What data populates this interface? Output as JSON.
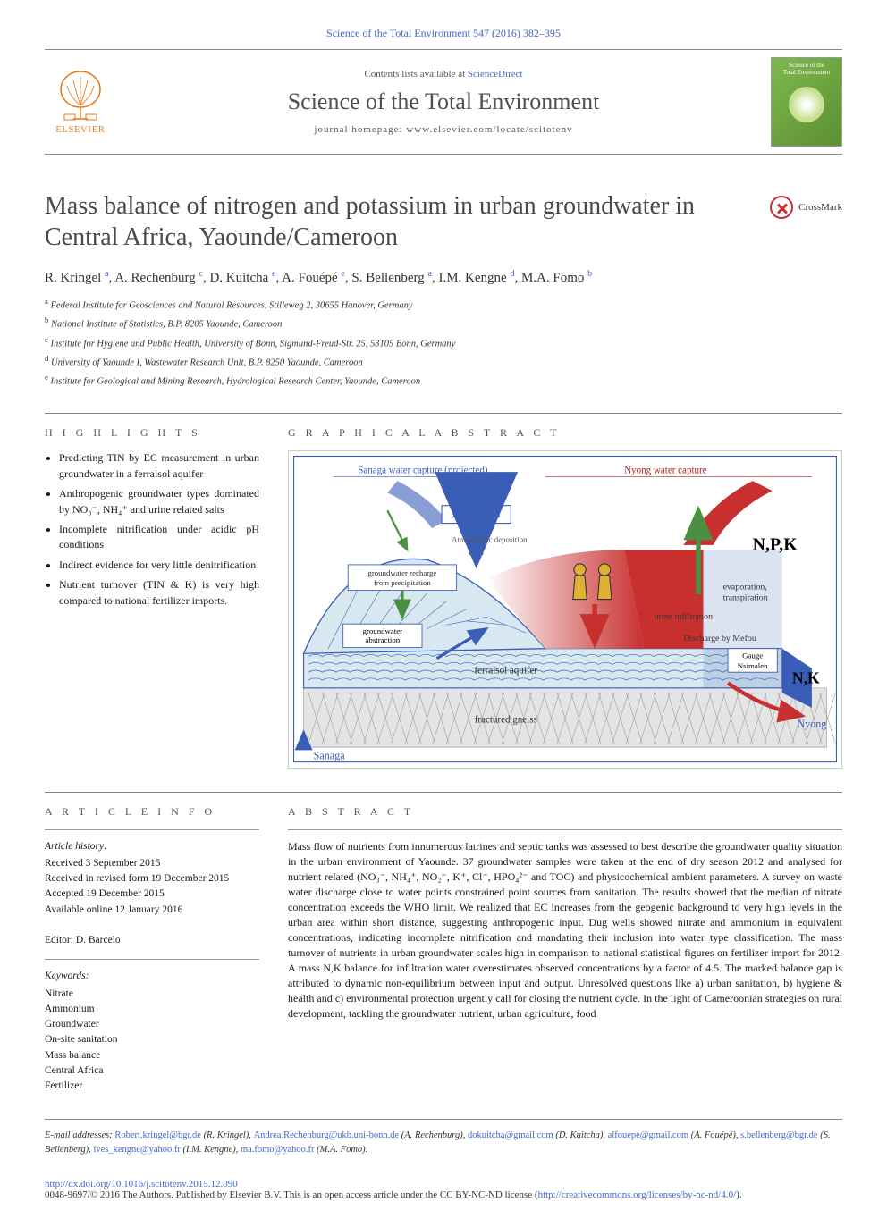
{
  "header": {
    "citation": "Science of the Total Environment 547 (2016) 382–395",
    "contents_prefix": "Contents lists available at ",
    "contents_link": "ScienceDirect",
    "journal_title": "Science of the Total Environment",
    "homepage_prefix": "journal homepage: ",
    "homepage_url": "www.elsevier.com/locate/scitotenv",
    "publisher_name": "ELSEVIER",
    "cover_line1": "Science of the",
    "cover_line2": "Total Environment"
  },
  "crossmark_label": "CrossMark",
  "article": {
    "title": "Mass balance of nitrogen and potassium in urban groundwater in Central Africa, Yaounde/Cameroon",
    "authors_html": "R. Kringel <sup>a</sup>, A. Rechenburg <sup>c</sup>, D. Kuitcha <sup>e</sup>, A. Fouépé <sup>e</sup>, S. Bellenberg <sup>a</sup>, I.M. Kengne <sup>d</sup>, M.A. Fomo <sup>b</sup>",
    "affiliations": [
      {
        "sup": "a",
        "text": "Federal Institute for Geosciences and Natural Resources, Stilleweg 2, 30655 Hanover, Germany"
      },
      {
        "sup": "b",
        "text": "National Institute of Statistics, B.P. 8205 Yaounde, Cameroon"
      },
      {
        "sup": "c",
        "text": "Institute for Hygiene and Public Health, University of Bonn, Sigmund-Freud-Str. 25, 53105 Bonn, Germany"
      },
      {
        "sup": "d",
        "text": "University of Yaounde I, Wastewater Research Unit, B.P. 8250 Yaounde, Cameroon"
      },
      {
        "sup": "e",
        "text": "Institute for Geological and Mining Research, Hydrological Research Center, Yaounde, Cameroon"
      }
    ]
  },
  "labels": {
    "highlights": "H I G H L I G H T S",
    "graphical_abstract": "G R A P H I C A L  A B S T R A C T",
    "article_info": "A R T I C L E  I N F O",
    "abstract": "A B S T R A C T"
  },
  "highlights": [
    "Predicting TIN by EC measurement in urban groundwater in a ferralsol aquifer",
    "Anthropogenic groundwater types dominated by NO₃⁻, NH₄⁺ and urine related salts",
    "Incomplete nitrification under acidic pH conditions",
    "Indirect evidence for very little denitrification",
    "Nutrient turnover (TIN & K) is very high compared to national fertilizer imports."
  ],
  "graphical_abstract": {
    "colors": {
      "border": "#3a5eb8",
      "sanaga_text": "#3a5eb8",
      "mefou_text": "#3a5eb8",
      "nyong_text": "#b02020",
      "hill_fill": "#d8e8f0",
      "hill_stroke": "#3a5eb8",
      "urban_fill": "#c83030",
      "gradient_left": "#ffffff",
      "gradient_right": "#c83030",
      "river_fill": "#3a5eb8",
      "aquifer_fill": "#d8e8f0",
      "gneiss_fill": "#e4e4e4",
      "arrow_green": "#4a9040",
      "arrow_red": "#c83030",
      "person_fill": "#e0b030",
      "label_box_fill": "#ffffff",
      "label_box_stroke": "#3a5eb8",
      "npk_text": "#000000"
    },
    "labels": {
      "top_left": "Sanaga water capture (projected)",
      "top_right": "Nyong water capture",
      "mefou": "Mefou Dam",
      "atmos": "Atmospheric deposition",
      "recharge": "groundwater recharge from precipitation",
      "abstraction": "groundwater abstraction",
      "evap": "evaporation, transpiration",
      "urine": "urine infiltration",
      "discharge": "Discharge by Mefou",
      "gauge": "Gauge Nsimalen",
      "aquifer": "ferralsol aquifer",
      "gneiss": "fractured gneiss",
      "sanaga": "Sanaga",
      "nyong": "Nyong",
      "npk_top": "N,P,K",
      "nk_bottom": "N,K"
    }
  },
  "article_info": {
    "history_heading": "Article history:",
    "history": [
      "Received 3 September 2015",
      "Received in revised form 19 December 2015",
      "Accepted 19 December 2015",
      "Available online 12 January 2016"
    ],
    "editor_label": "Editor: ",
    "editor": "D. Barcelo",
    "keywords_heading": "Keywords:",
    "keywords": [
      "Nitrate",
      "Ammonium",
      "Groundwater",
      "On-site sanitation",
      "Mass balance",
      "Central Africa",
      "Fertilizer"
    ]
  },
  "abstract": "Mass flow of nutrients from innumerous latrines and septic tanks was assessed to best describe the groundwater quality situation in the urban environment of Yaounde. 37 groundwater samples were taken at the end of dry season 2012 and analysed for nutrient related (NO₃⁻, NH₄⁺, NO₂⁻, K⁺, Cl⁻, HPO₄²⁻ and TOC) and physicochemical ambient parameters. A survey on waste water discharge close to water points constrained point sources from sanitation. The results showed that the median of nitrate concentration exceeds the WHO limit. We realized that EC increases from the geogenic background to very high levels in the urban area within short distance, suggesting anthropogenic input. Dug wells showed nitrate and ammonium in equivalent concentrations, indicating incomplete nitrification and mandating their inclusion into water type classification. The mass turnover of nutrients in urban groundwater scales high in comparison to national statistical figures on fertilizer import for 2012. A mass N,K balance for infiltration water overestimates observed concentrations by a factor of 4.5. The marked balance gap is attributed to dynamic non-equilibrium between input and output. Unresolved questions like a) urban sanitation, b) hygiene & health and c) environmental protection urgently call for closing the nutrient cycle. In the light of Cameroonian strategies on rural development, tackling the groundwater nutrient, urban agriculture, food",
  "footer": {
    "emails_prefix": "E-mail addresses: ",
    "emails": [
      {
        "addr": "Robert.kringel@bgr.de",
        "who": "(R. Kringel)"
      },
      {
        "addr": "Andrea.Rechenburg@ukb.uni-bonn.de",
        "who": "(A. Rechenburg)"
      },
      {
        "addr": "dokuitcha@gmail.com",
        "who": "(D. Kuitcha)"
      },
      {
        "addr": "alfouepe@gmail.com",
        "who": "(A. Fouépé)"
      },
      {
        "addr": "s.bellenberg@bgr.de",
        "who": "(S. Bellenberg)"
      },
      {
        "addr": "ives_kengne@yahoo.fr",
        "who": "(I.M. Kengne)"
      },
      {
        "addr": "ma.fomo@yahoo.fr",
        "who": "(M.A. Fomo)"
      }
    ],
    "doi": "http://dx.doi.org/10.1016/j.scitotenv.2015.12.090",
    "copyright_prefix": "0048-9697/© 2016 The Authors. Published by Elsevier B.V. This is an open access article under the CC BY-NC-ND license (",
    "cc_link": "http://creativecommons.org/licenses/by-nc-nd/4.0/",
    "copyright_suffix": ")."
  }
}
